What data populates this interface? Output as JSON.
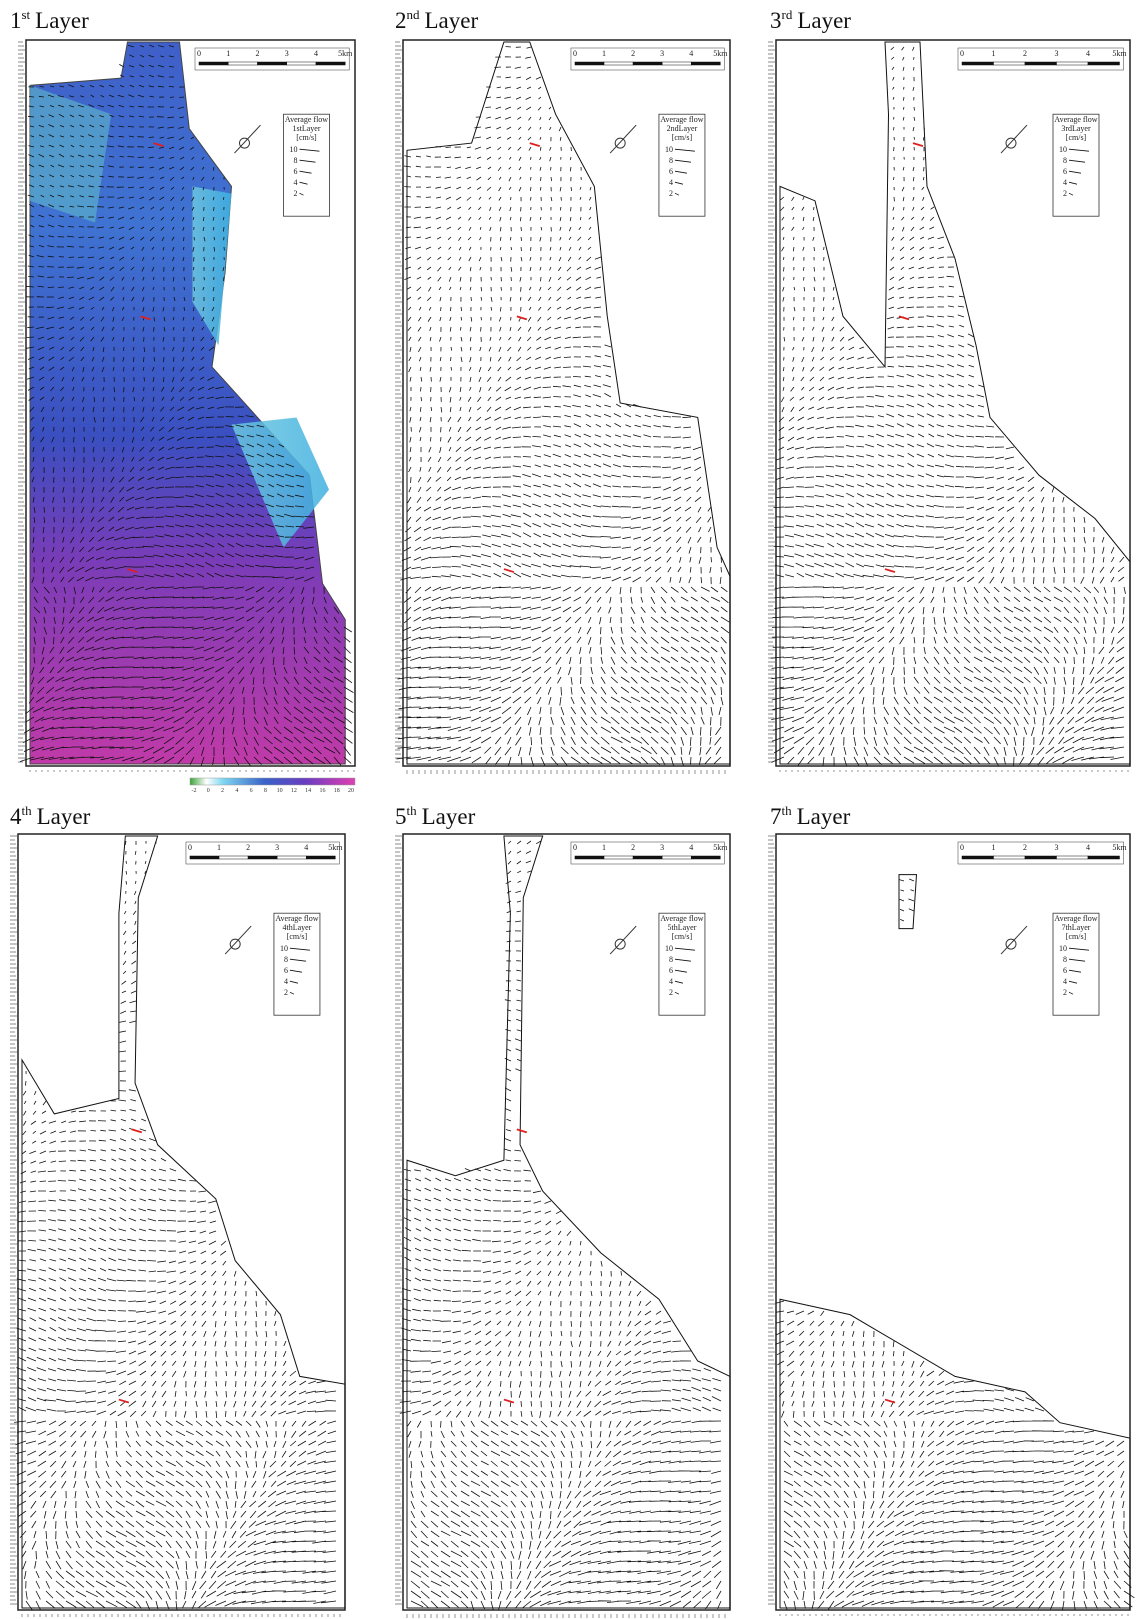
{
  "panels": [
    {
      "title": {
        "ordinal": "1",
        "suffix": "st",
        "word": "Layer"
      },
      "legend": {
        "heading": "Average flow",
        "layer": "1stLayer",
        "unit": "[cm/s]",
        "ticks": [
          "10",
          "8",
          "6",
          "4",
          "2"
        ]
      },
      "scale_bar": [
        "0",
        "1",
        "2",
        "3",
        "4",
        "5km"
      ]
    },
    {
      "title": {
        "ordinal": "2",
        "suffix": "nd",
        "word": "Layer"
      },
      "legend": {
        "heading": "Average flow",
        "layer": "2ndLayer",
        "unit": "[cm/s]",
        "ticks": [
          "10",
          "8",
          "6",
          "4",
          "2"
        ]
      },
      "scale_bar": [
        "0",
        "1",
        "2",
        "3",
        "4",
        "5km"
      ]
    },
    {
      "title": {
        "ordinal": "3",
        "suffix": "rd",
        "word": "Layer"
      },
      "legend": {
        "heading": "Average flow",
        "layer": "3rdLayer",
        "unit": "[cm/s]",
        "ticks": [
          "10",
          "8",
          "6",
          "4",
          "2"
        ]
      },
      "scale_bar": [
        "0",
        "1",
        "2",
        "3",
        "4",
        "5km"
      ]
    },
    {
      "title": {
        "ordinal": "4",
        "suffix": "th",
        "word": "Layer"
      },
      "legend": {
        "heading": "Average flow",
        "layer": "4thLayer",
        "unit": "[cm/s]",
        "ticks": [
          "10",
          "8",
          "6",
          "4",
          "2"
        ]
      },
      "scale_bar": [
        "0",
        "1",
        "2",
        "3",
        "4",
        "5km"
      ]
    },
    {
      "title": {
        "ordinal": "5",
        "suffix": "th",
        "word": "Layer"
      },
      "legend": {
        "heading": "Average flow",
        "layer": "5thLayer",
        "unit": "[cm/s]",
        "ticks": [
          "10",
          "8",
          "6",
          "4",
          "2"
        ]
      },
      "scale_bar": [
        "0",
        "1",
        "2",
        "3",
        "4",
        "5km"
      ]
    },
    {
      "title": {
        "ordinal": "7",
        "suffix": "th",
        "word": "Layer"
      },
      "legend": {
        "heading": "Average flow",
        "layer": "7thLayer",
        "unit": "[cm/s]",
        "ticks": [
          "10",
          "8",
          "6",
          "4",
          "2"
        ]
      },
      "scale_bar": [
        "0",
        "1",
        "2",
        "3",
        "4",
        "5km"
      ]
    }
  ],
  "colorbar": [
    "-2",
    "0",
    "2",
    "4",
    "6",
    "8",
    "10",
    "12",
    "14",
    "16",
    "18",
    "20"
  ]
}
